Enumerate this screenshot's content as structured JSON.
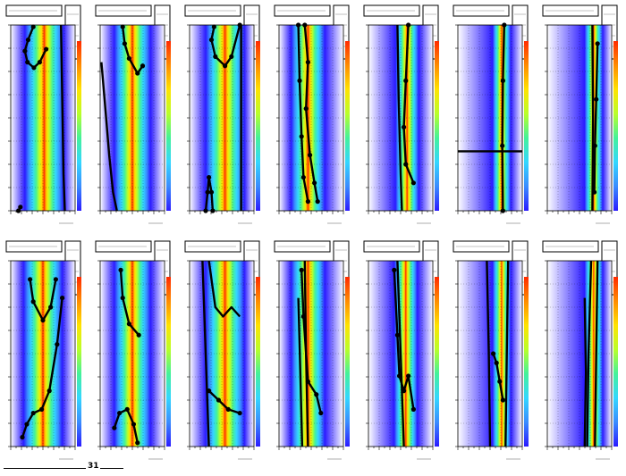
{
  "footer": {
    "number_label": "31"
  },
  "colors": {
    "background": "#ffffff",
    "curve": "#000000",
    "palette": [
      "#2b1bff",
      "#3a8cff",
      "#33d7ff",
      "#44f29a",
      "#b9ff2a",
      "#ffe300",
      "#ff8c00",
      "#ff2a00"
    ]
  },
  "chart_data": [
    {
      "type": "heatmap",
      "row": 1,
      "col": 1,
      "x_center": 0.52,
      "x_width": 0.3,
      "colorbar": true,
      "curves": [
        {
          "style": "dots+line",
          "points": [
            [
              0.35,
              0.99
            ],
            [
              0.27,
              0.92
            ],
            [
              0.22,
              0.86
            ],
            [
              0.26,
              0.8
            ],
            [
              0.36,
              0.77
            ],
            [
              0.45,
              0.8
            ],
            [
              0.55,
              0.87
            ]
          ]
        },
        {
          "style": "line",
          "points": [
            [
              0.78,
              1.0
            ],
            [
              0.8,
              0.6
            ],
            [
              0.82,
              0.2
            ],
            [
              0.84,
              0.0
            ]
          ]
        },
        {
          "style": "dots",
          "points": [
            [
              0.15,
              0.02
            ],
            [
              0.12,
              0.0
            ]
          ]
        }
      ]
    },
    {
      "type": "heatmap",
      "row": 1,
      "col": 2,
      "x_center": 0.5,
      "x_width": 0.28,
      "colorbar": true,
      "curves": [
        {
          "style": "dots+line",
          "points": [
            [
              0.35,
              0.99
            ],
            [
              0.38,
              0.9
            ],
            [
              0.45,
              0.82
            ],
            [
              0.58,
              0.74
            ],
            [
              0.66,
              0.78
            ]
          ]
        },
        {
          "style": "line",
          "points": [
            [
              0.02,
              0.8
            ],
            [
              0.08,
              0.55
            ],
            [
              0.14,
              0.3
            ],
            [
              0.2,
              0.1
            ],
            [
              0.26,
              0.0
            ]
          ]
        }
      ]
    },
    {
      "type": "heatmap",
      "row": 1,
      "col": 3,
      "x_center": 0.55,
      "x_width": 0.3,
      "colorbar": true,
      "curves": [
        {
          "style": "dots+line",
          "points": [
            [
              0.38,
              0.99
            ],
            [
              0.34,
              0.92
            ],
            [
              0.4,
              0.83
            ],
            [
              0.55,
              0.78
            ],
            [
              0.65,
              0.83
            ],
            [
              0.78,
              1.0
            ]
          ]
        },
        {
          "style": "line",
          "points": [
            [
              0.8,
              1.0
            ],
            [
              0.8,
              0.0
            ]
          ]
        },
        {
          "style": "dots+line",
          "points": [
            [
              0.25,
              0.0
            ],
            [
              0.28,
              0.1
            ],
            [
              0.3,
              0.18
            ],
            [
              0.34,
              0.1
            ],
            [
              0.36,
              0.0
            ]
          ]
        }
      ]
    },
    {
      "type": "heatmap",
      "row": 1,
      "col": 4,
      "x_center": 0.45,
      "x_width": 0.26,
      "colorbar": true,
      "curves": [
        {
          "style": "dots+line",
          "points": [
            [
              0.4,
              1.0
            ],
            [
              0.45,
              0.8
            ],
            [
              0.42,
              0.55
            ],
            [
              0.48,
              0.3
            ],
            [
              0.55,
              0.15
            ],
            [
              0.6,
              0.05
            ]
          ]
        },
        {
          "style": "dots+line",
          "points": [
            [
              0.3,
              1.0
            ],
            [
              0.32,
              0.7
            ],
            [
              0.35,
              0.4
            ],
            [
              0.38,
              0.18
            ],
            [
              0.45,
              0.05
            ]
          ]
        }
      ]
    },
    {
      "type": "heatmap",
      "row": 1,
      "col": 5,
      "x_center": 0.6,
      "x_width": 0.18,
      "colorbar": true,
      "curves": [
        {
          "style": "dots+line",
          "points": [
            [
              0.62,
              1.0
            ],
            [
              0.58,
              0.7
            ],
            [
              0.55,
              0.45
            ],
            [
              0.58,
              0.25
            ],
            [
              0.7,
              0.15
            ]
          ]
        },
        {
          "style": "line",
          "points": [
            [
              0.45,
              1.0
            ],
            [
              0.47,
              0.6
            ],
            [
              0.5,
              0.2
            ],
            [
              0.52,
              0.0
            ]
          ]
        }
      ]
    },
    {
      "type": "heatmap",
      "row": 1,
      "col": 6,
      "x_center": 0.68,
      "x_width": 0.14,
      "colorbar": true,
      "curves": [
        {
          "style": "dots+line",
          "points": [
            [
              0.72,
              1.0
            ],
            [
              0.7,
              0.7
            ],
            [
              0.69,
              0.35
            ],
            [
              0.7,
              0.0
            ]
          ]
        },
        {
          "style": "line",
          "points": [
            [
              0.0,
              0.32
            ],
            [
              1.0,
              0.32
            ]
          ]
        }
      ]
    },
    {
      "type": "heatmap",
      "row": 1,
      "col": 7,
      "x_center": 0.72,
      "x_width": 0.14,
      "colorbar": true,
      "curves": [
        {
          "style": "dots+line",
          "points": [
            [
              0.78,
              0.9
            ],
            [
              0.76,
              0.6
            ],
            [
              0.74,
              0.35
            ],
            [
              0.73,
              0.1
            ]
          ]
        },
        {
          "style": "line",
          "points": [
            [
              0.7,
              1.0
            ],
            [
              0.71,
              0.5
            ],
            [
              0.7,
              0.0
            ]
          ]
        }
      ]
    },
    {
      "type": "heatmap",
      "row": 2,
      "col": 1,
      "x_center": 0.5,
      "x_width": 0.3,
      "colorbar": true,
      "curves": [
        {
          "style": "dots+line",
          "points": [
            [
              0.3,
              0.9
            ],
            [
              0.35,
              0.78
            ],
            [
              0.5,
              0.68
            ],
            [
              0.62,
              0.75
            ],
            [
              0.7,
              0.9
            ]
          ]
        },
        {
          "style": "dots+line",
          "points": [
            [
              0.18,
              0.05
            ],
            [
              0.25,
              0.12
            ],
            [
              0.35,
              0.18
            ],
            [
              0.48,
              0.2
            ],
            [
              0.6,
              0.3
            ],
            [
              0.72,
              0.55
            ],
            [
              0.8,
              0.8
            ]
          ]
        }
      ]
    },
    {
      "type": "heatmap",
      "row": 2,
      "col": 2,
      "x_center": 0.5,
      "x_width": 0.28,
      "colorbar": true,
      "curves": [
        {
          "style": "dots+line",
          "points": [
            [
              0.32,
              0.95
            ],
            [
              0.35,
              0.8
            ],
            [
              0.45,
              0.66
            ],
            [
              0.6,
              0.6
            ]
          ]
        },
        {
          "style": "dots+line",
          "points": [
            [
              0.22,
              0.1
            ],
            [
              0.3,
              0.18
            ],
            [
              0.42,
              0.2
            ],
            [
              0.52,
              0.12
            ],
            [
              0.58,
              0.02
            ]
          ]
        }
      ]
    },
    {
      "type": "heatmap",
      "row": 2,
      "col": 3,
      "x_center": 0.55,
      "x_width": 0.3,
      "colorbar": true,
      "curves": [
        {
          "style": "line",
          "points": [
            [
              0.3,
              1.0
            ],
            [
              0.4,
              0.75
            ],
            [
              0.52,
              0.7
            ],
            [
              0.65,
              0.75
            ],
            [
              0.78,
              0.7
            ]
          ]
        },
        {
          "style": "dots+line",
          "points": [
            [
              0.3,
              0.3
            ],
            [
              0.45,
              0.25
            ],
            [
              0.6,
              0.2
            ],
            [
              0.78,
              0.18
            ]
          ]
        },
        {
          "style": "line",
          "points": [
            [
              0.2,
              1.0
            ],
            [
              0.25,
              0.5
            ],
            [
              0.3,
              0.0
            ]
          ]
        }
      ]
    },
    {
      "type": "heatmap",
      "row": 2,
      "col": 4,
      "x_center": 0.45,
      "x_width": 0.26,
      "colorbar": true,
      "curves": [
        {
          "style": "dots+line",
          "points": [
            [
              0.35,
              0.95
            ],
            [
              0.38,
              0.7
            ],
            [
              0.45,
              0.35
            ],
            [
              0.58,
              0.28
            ],
            [
              0.65,
              0.18
            ]
          ]
        },
        {
          "style": "line",
          "points": [
            [
              0.4,
              1.0
            ],
            [
              0.42,
              0.5
            ],
            [
              0.45,
              0.0
            ]
          ]
        },
        {
          "style": "line",
          "points": [
            [
              0.3,
              0.8
            ],
            [
              0.33,
              0.4
            ],
            [
              0.36,
              0.0
            ]
          ]
        }
      ]
    },
    {
      "type": "heatmap",
      "row": 2,
      "col": 5,
      "x_center": 0.58,
      "x_width": 0.18,
      "colorbar": true,
      "curves": [
        {
          "style": "dots+line",
          "points": [
            [
              0.4,
              0.95
            ],
            [
              0.45,
              0.6
            ],
            [
              0.48,
              0.38
            ],
            [
              0.55,
              0.3
            ],
            [
              0.62,
              0.38
            ],
            [
              0.7,
              0.2
            ]
          ]
        },
        {
          "style": "line",
          "points": [
            [
              0.45,
              1.0
            ],
            [
              0.5,
              0.5
            ],
            [
              0.55,
              0.0
            ]
          ]
        }
      ]
    },
    {
      "type": "heatmap",
      "row": 2,
      "col": 6,
      "x_center": 0.68,
      "x_width": 0.14,
      "colorbar": true,
      "curves": [
        {
          "style": "dots+line",
          "points": [
            [
              0.55,
              0.5
            ],
            [
              0.6,
              0.45
            ],
            [
              0.65,
              0.35
            ],
            [
              0.7,
              0.25
            ]
          ]
        },
        {
          "style": "line",
          "points": [
            [
              0.45,
              1.0
            ],
            [
              0.48,
              0.5
            ],
            [
              0.5,
              0.0
            ]
          ]
        },
        {
          "style": "line",
          "points": [
            [
              0.78,
              1.0
            ],
            [
              0.76,
              0.5
            ],
            [
              0.74,
              0.0
            ]
          ]
        }
      ]
    },
    {
      "type": "heatmap",
      "row": 2,
      "col": 7,
      "x_center": 0.72,
      "x_width": 0.14,
      "colorbar": true,
      "curves": [
        {
          "style": "line",
          "points": [
            [
              0.68,
              1.0
            ],
            [
              0.64,
              0.5
            ],
            [
              0.62,
              0.0
            ]
          ]
        },
        {
          "style": "line",
          "points": [
            [
              0.78,
              1.0
            ],
            [
              0.76,
              0.5
            ],
            [
              0.74,
              0.0
            ]
          ]
        },
        {
          "style": "line",
          "points": [
            [
              0.58,
              0.8
            ],
            [
              0.6,
              0.4
            ],
            [
              0.58,
              0.0
            ]
          ]
        }
      ]
    }
  ]
}
